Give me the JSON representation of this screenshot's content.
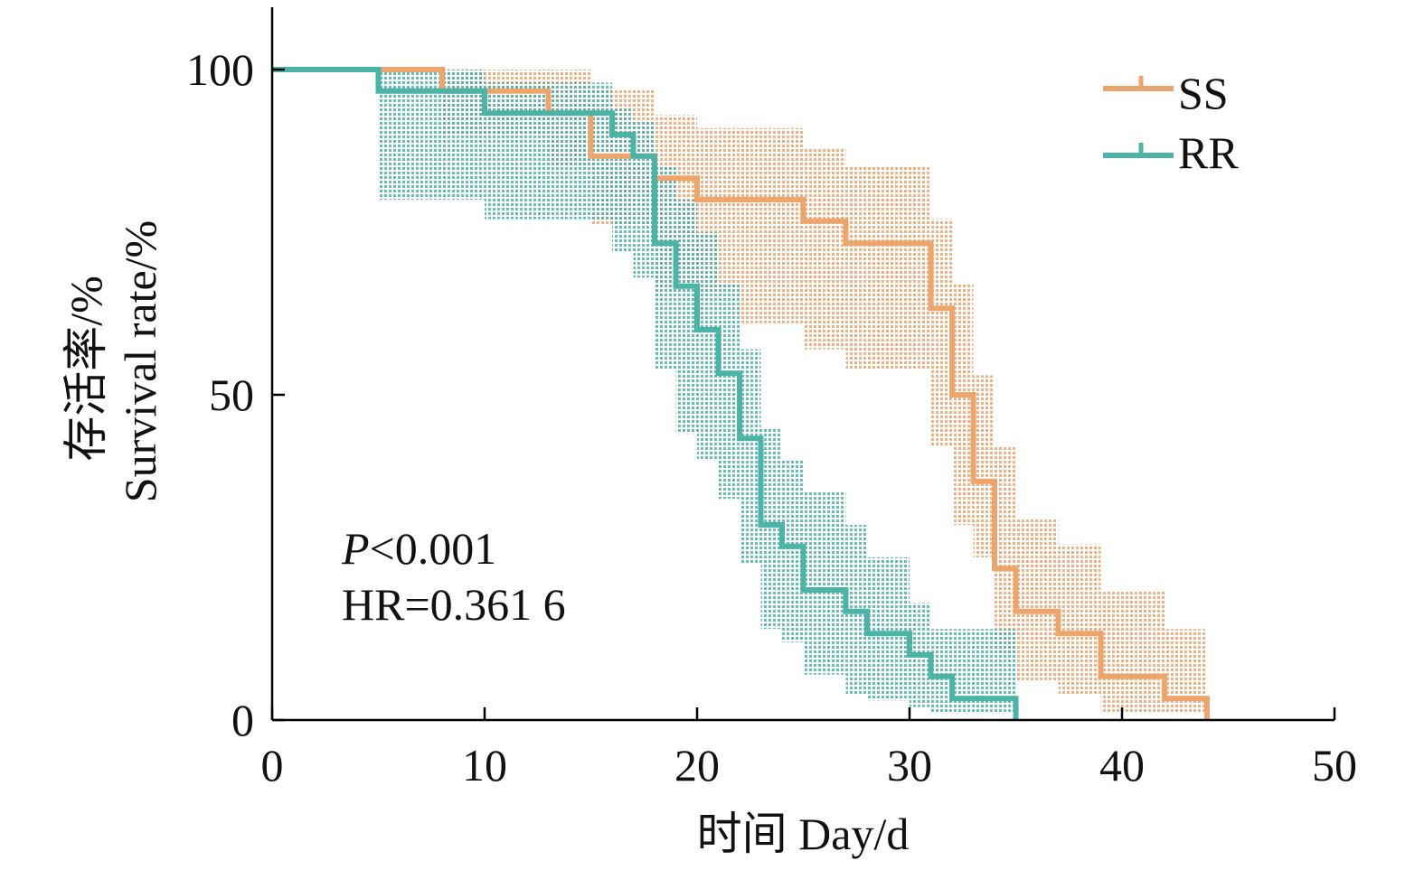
{
  "chart_data": {
    "type": "line",
    "subtype": "kaplan-meier survival curve with confidence bands",
    "xlabel": "时间 Day/d",
    "ylabel_cn": "存活率/%",
    "ylabel_en": "Survival rate/%",
    "xlim": [
      0,
      50
    ],
    "ylim": [
      0,
      100
    ],
    "xticks": [
      0,
      10,
      20,
      30,
      40,
      50
    ],
    "yticks": [
      0,
      50,
      100
    ],
    "grid": false,
    "legend_position": "top-right",
    "annotations": {
      "p_prefix": "P",
      "p_rest": "<0.001",
      "hr": "HR=0.361 6"
    },
    "series": [
      {
        "name": "SS",
        "color": "#EDA56E",
        "band_color": "#EDA56E",
        "steps": [
          [
            0,
            100
          ],
          [
            8,
            96.7
          ],
          [
            13,
            93.3
          ],
          [
            15,
            86.7
          ],
          [
            18,
            83.3
          ],
          [
            20,
            80
          ],
          [
            25,
            76.7
          ],
          [
            27,
            73.3
          ],
          [
            31,
            63.3
          ],
          [
            32,
            50
          ],
          [
            33,
            36.7
          ],
          [
            34,
            23.3
          ],
          [
            35,
            16.7
          ],
          [
            37,
            13.3
          ],
          [
            39,
            6.7
          ],
          [
            42,
            3.3
          ],
          [
            44,
            0
          ]
        ],
        "ci_lower": [
          [
            0,
            100
          ],
          [
            8,
            90
          ],
          [
            13,
            85
          ],
          [
            15,
            76
          ],
          [
            18,
            66
          ],
          [
            20,
            66
          ],
          [
            22,
            61
          ],
          [
            25,
            57
          ],
          [
            27,
            54
          ],
          [
            31,
            42
          ],
          [
            32,
            30
          ],
          [
            33,
            25
          ],
          [
            34,
            10
          ],
          [
            35,
            6
          ],
          [
            37,
            4
          ],
          [
            39,
            1
          ],
          [
            44,
            0
          ]
        ],
        "ci_upper": [
          [
            0,
            100
          ],
          [
            8,
            100
          ],
          [
            13,
            100
          ],
          [
            15,
            97
          ],
          [
            18,
            93
          ],
          [
            20,
            91
          ],
          [
            25,
            88
          ],
          [
            27,
            85
          ],
          [
            31,
            77
          ],
          [
            32,
            67
          ],
          [
            33,
            53
          ],
          [
            34,
            42
          ],
          [
            35,
            31
          ],
          [
            37,
            27
          ],
          [
            39,
            20
          ],
          [
            42,
            14
          ],
          [
            44,
            14
          ]
        ]
      },
      {
        "name": "RR",
        "color": "#4DB3A7",
        "band_color": "#4DB3A7",
        "steps": [
          [
            0,
            100
          ],
          [
            5,
            96.7
          ],
          [
            10,
            93.3
          ],
          [
            16,
            90
          ],
          [
            17,
            86.7
          ],
          [
            18,
            73.3
          ],
          [
            19,
            66.7
          ],
          [
            20,
            60
          ],
          [
            21,
            53.3
          ],
          [
            22,
            43.3
          ],
          [
            23,
            30
          ],
          [
            24,
            26.7
          ],
          [
            25,
            20
          ],
          [
            27,
            16.7
          ],
          [
            28,
            13.3
          ],
          [
            30,
            10
          ],
          [
            31,
            6.7
          ],
          [
            32,
            3.3
          ],
          [
            35,
            0
          ]
        ],
        "ci_lower": [
          [
            0,
            100
          ],
          [
            5,
            80
          ],
          [
            10,
            77
          ],
          [
            16,
            72
          ],
          [
            17,
            68
          ],
          [
            18,
            54
          ],
          [
            19,
            44
          ],
          [
            20,
            40
          ],
          [
            21,
            34
          ],
          [
            22,
            24
          ],
          [
            23,
            14
          ],
          [
            24,
            12
          ],
          [
            25,
            7
          ],
          [
            27,
            4
          ],
          [
            28,
            3
          ],
          [
            30,
            2
          ],
          [
            31,
            1
          ],
          [
            35,
            0
          ]
        ],
        "ci_upper": [
          [
            0,
            100
          ],
          [
            5,
            100
          ],
          [
            10,
            98
          ],
          [
            16,
            94
          ],
          [
            17,
            92
          ],
          [
            18,
            85
          ],
          [
            19,
            80
          ],
          [
            20,
            75
          ],
          [
            21,
            67
          ],
          [
            22,
            57
          ],
          [
            23,
            45
          ],
          [
            24,
            40
          ],
          [
            25,
            35
          ],
          [
            27,
            30
          ],
          [
            28,
            25
          ],
          [
            30,
            18
          ],
          [
            31,
            14
          ],
          [
            35,
            14
          ]
        ]
      }
    ]
  }
}
